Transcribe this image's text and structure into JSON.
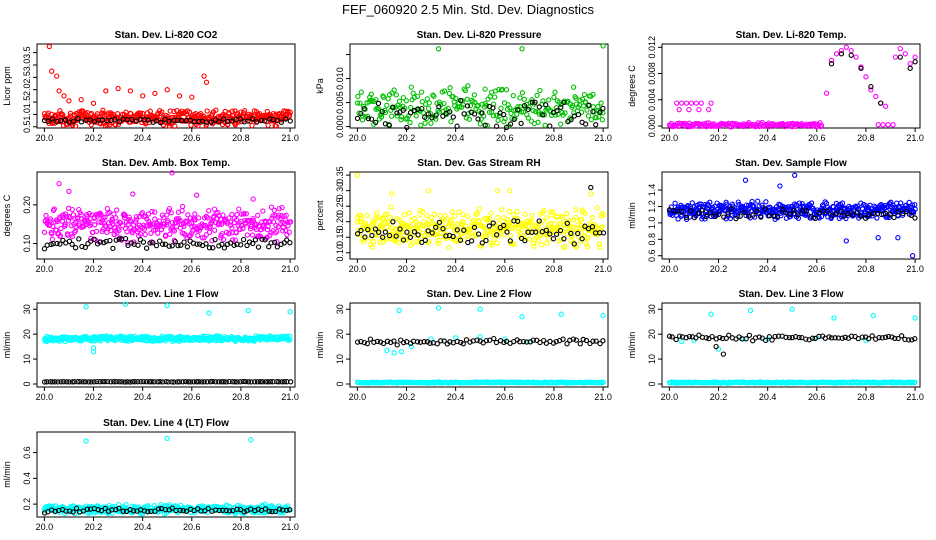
{
  "page": {
    "title": "FEF_060920  2.5 Min. Std. Dev. Diagnostics"
  },
  "chart_data": [
    {
      "id": "co2",
      "type": "scatter",
      "title": "Stan. Dev. Li-820 CO2",
      "ylabel": "Licor ppm",
      "xlim": [
        19.97,
        21.02
      ],
      "ylim": [
        0.45,
        3.85
      ],
      "xticks": [
        20.0,
        20.2,
        20.4,
        20.6,
        20.8,
        21.0
      ],
      "yticks": [
        0.5,
        1.0,
        1.5,
        2.0,
        2.5,
        3.0,
        3.5
      ],
      "ytick_labels": [
        "0.5",
        "1.0",
        "1.5",
        "2.0",
        "2.5",
        "3.0",
        "3.5"
      ],
      "series": [
        {
          "name": "main",
          "color": "#ff0000",
          "base": {
            "x0": 20.0,
            "x1": 21.0,
            "n": 420,
            "mean": 0.85,
            "spread": 0.35
          },
          "outliers": [
            [
              20.02,
              3.75
            ],
            [
              20.03,
              2.75
            ],
            [
              20.05,
              2.55
            ],
            [
              20.06,
              1.95
            ],
            [
              20.08,
              1.75
            ],
            [
              20.1,
              1.55
            ],
            [
              20.15,
              1.6
            ],
            [
              20.2,
              1.45
            ],
            [
              20.25,
              1.95
            ],
            [
              20.3,
              2.05
            ],
            [
              20.35,
              1.95
            ],
            [
              20.4,
              1.75
            ],
            [
              20.45,
              1.85
            ],
            [
              20.5,
              2.0
            ],
            [
              20.55,
              1.75
            ],
            [
              20.6,
              1.7
            ],
            [
              20.65,
              2.55
            ],
            [
              20.66,
              2.3
            ]
          ]
        },
        {
          "name": "overlay",
          "color": "#000000",
          "base": {
            "x0": 20.0,
            "x1": 21.0,
            "n": 60,
            "mean": 0.75,
            "spread": 0.1
          },
          "outliers": []
        }
      ]
    },
    {
      "id": "pressure",
      "type": "scatter",
      "title": "Stan. Dev. Li-820 Pressure",
      "ylabel": "kPa",
      "xlim": [
        19.97,
        21.02
      ],
      "ylim": [
        -0.0003,
        0.0172
      ],
      "xticks": [
        20.0,
        20.2,
        20.4,
        20.6,
        20.8,
        21.0
      ],
      "yticks": [
        0.0,
        0.005,
        0.01,
        0.015
      ],
      "ytick_labels": [
        "0.000",
        "0.005",
        "0.010",
        ""
      ],
      "series": [
        {
          "name": "main",
          "color": "#00c000",
          "base": {
            "x0": 20.0,
            "x1": 21.0,
            "n": 260,
            "mean": 0.004,
            "spread": 0.0045
          },
          "outliers": [
            [
              20.33,
              0.0162
            ],
            [
              20.67,
              0.0162
            ],
            [
              21.0,
              0.0168
            ],
            [
              20.45,
              0.0085
            ],
            [
              20.88,
              0.0082
            ],
            [
              20.52,
              0.0078
            ]
          ]
        },
        {
          "name": "overlay",
          "color": "#000000",
          "base": {
            "x0": 20.0,
            "x1": 21.0,
            "n": 70,
            "mean": 0.0025,
            "spread": 0.003
          },
          "outliers": []
        }
      ]
    },
    {
      "id": "temp",
      "type": "scatter",
      "title": "Stan. Dev. Li-820 Temp.",
      "ylabel": "degrees C",
      "xlim": [
        19.97,
        21.02
      ],
      "ylim": [
        -0.0003,
        0.0125
      ],
      "xticks": [
        20.0,
        20.2,
        20.4,
        20.6,
        20.8,
        21.0
      ],
      "yticks": [
        0.0,
        0.004,
        0.008,
        0.012
      ],
      "ytick_labels": [
        "0.000",
        "0.004",
        "0.008",
        "0.012"
      ],
      "series": [
        {
          "name": "main",
          "color": "#ff00ff",
          "base": {
            "x0": 20.0,
            "x1": 20.62,
            "n": 150,
            "mean": 0.0002,
            "spread": 0.0004
          },
          "outliers": [
            [
              20.03,
              0.0035
            ],
            [
              20.05,
              0.0035
            ],
            [
              20.07,
              0.0035
            ],
            [
              20.09,
              0.0035
            ],
            [
              20.11,
              0.0035
            ],
            [
              20.13,
              0.0035
            ],
            [
              20.17,
              0.0035
            ],
            [
              20.04,
              0.0025
            ],
            [
              20.08,
              0.0025
            ],
            [
              20.12,
              0.0025
            ],
            [
              20.16,
              0.0025
            ],
            [
              20.64,
              0.005
            ],
            [
              20.66,
              0.01
            ],
            [
              20.68,
              0.011
            ],
            [
              20.7,
              0.0115
            ],
            [
              20.72,
              0.012
            ],
            [
              20.74,
              0.0115
            ],
            [
              20.76,
              0.0105
            ],
            [
              20.78,
              0.009
            ],
            [
              20.8,
              0.0075
            ],
            [
              20.82,
              0.0055
            ],
            [
              20.84,
              0.0045
            ],
            [
              20.86,
              0.0035
            ],
            [
              20.88,
              0.003
            ],
            [
              20.92,
              0.0105
            ],
            [
              20.94,
              0.0118
            ],
            [
              20.96,
              0.011
            ],
            [
              20.98,
              0.0095
            ],
            [
              21.0,
              0.0105
            ],
            [
              20.85,
              0.0002
            ],
            [
              20.87,
              0.0002
            ],
            [
              20.89,
              0.0002
            ],
            [
              20.91,
              0.0002
            ]
          ]
        },
        {
          "name": "overlay",
          "color": "#000000",
          "base": {
            "x0": 20.64,
            "x1": 21.0,
            "n": 0,
            "mean": 0.0,
            "spread": 0.0
          },
          "outliers": [
            [
              20.66,
              0.0095
            ],
            [
              20.7,
              0.011
            ],
            [
              20.74,
              0.0108
            ],
            [
              20.78,
              0.0088
            ],
            [
              20.82,
              0.006
            ],
            [
              20.86,
              0.0035
            ],
            [
              20.94,
              0.0105
            ],
            [
              20.98,
              0.0088
            ],
            [
              21.0,
              0.0098
            ]
          ]
        }
      ]
    },
    {
      "id": "boxtemp",
      "type": "scatter",
      "title": "Stan. Dev. Amb. Box Temp.",
      "ylabel": "degrees C",
      "xlim": [
        19.97,
        21.02
      ],
      "ylim": [
        0.06,
        0.285
      ],
      "xticks": [
        20.0,
        20.2,
        20.4,
        20.6,
        20.8,
        21.0
      ],
      "yticks": [
        0.1,
        0.2
      ],
      "ytick_labels": [
        "0.10",
        "0.20"
      ],
      "series": [
        {
          "name": "main",
          "color": "#ff00ff",
          "base": {
            "x0": 20.0,
            "x1": 21.0,
            "n": 420,
            "mean": 0.15,
            "spread": 0.05
          },
          "outliers": [
            [
              20.52,
              0.283
            ],
            [
              20.06,
              0.255
            ],
            [
              20.1,
              0.235
            ],
            [
              20.36,
              0.228
            ],
            [
              20.62,
              0.225
            ],
            [
              20.85,
              0.215
            ]
          ]
        },
        {
          "name": "overlay",
          "color": "#000000",
          "base": {
            "x0": 20.0,
            "x1": 21.0,
            "n": 80,
            "mean": 0.1,
            "spread": 0.015
          },
          "outliers": []
        }
      ]
    },
    {
      "id": "rh",
      "type": "scatter",
      "title": "Stan. Dev. Gas Stream RH",
      "ylabel": "percent",
      "xlim": [
        19.97,
        21.02
      ],
      "ylim": [
        0.08,
        0.36
      ],
      "xticks": [
        20.0,
        20.2,
        20.4,
        20.6,
        20.8,
        21.0
      ],
      "yticks": [
        0.1,
        0.15,
        0.2,
        0.25,
        0.3,
        0.35
      ],
      "ytick_labels": [
        "0.10",
        "0.15",
        "0.20",
        "0.25",
        "0.30",
        "0.35"
      ],
      "series": [
        {
          "name": "main",
          "color": "#ffff00",
          "base": {
            "x0": 20.0,
            "x1": 21.0,
            "n": 420,
            "mean": 0.18,
            "spread": 0.07
          },
          "outliers": [
            [
              20.0,
              0.35
            ],
            [
              20.14,
              0.29
            ],
            [
              20.29,
              0.3
            ],
            [
              20.57,
              0.3
            ],
            [
              20.62,
              0.3
            ],
            [
              20.95,
              0.29
            ]
          ]
        },
        {
          "name": "overlay",
          "color": "#000000",
          "base": {
            "x0": 20.0,
            "x1": 21.0,
            "n": 70,
            "mean": 0.17,
            "spread": 0.045
          },
          "outliers": [
            [
              20.95,
              0.31
            ]
          ]
        }
      ]
    },
    {
      "id": "sampleflow",
      "type": "scatter",
      "title": "Stan. Dev. Sample Flow",
      "ylabel": "ml/min",
      "xlim": [
        19.97,
        21.02
      ],
      "ylim": [
        0.56,
        1.62
      ],
      "xticks": [
        20.0,
        20.2,
        20.4,
        20.6,
        20.8,
        21.0
      ],
      "yticks": [
        0.6,
        0.8,
        1.0,
        1.2,
        1.4
      ],
      "ytick_labels": [
        "0.6",
        "0.8",
        "1.0",
        "1.2",
        "1.4"
      ],
      "series": [
        {
          "name": "main",
          "color": "#0000ff",
          "base": {
            "x0": 20.0,
            "x1": 21.0,
            "n": 440,
            "mean": 1.15,
            "spread": 0.12
          },
          "outliers": [
            [
              20.31,
              1.52
            ],
            [
              20.51,
              1.58
            ],
            [
              20.45,
              1.45
            ],
            [
              20.72,
              0.78
            ],
            [
              20.99,
              0.6
            ],
            [
              20.85,
              0.82
            ],
            [
              20.93,
              0.82
            ]
          ]
        },
        {
          "name": "overlay",
          "color": "#000000",
          "base": {
            "x0": 20.0,
            "x1": 21.0,
            "n": 60,
            "mean": 1.12,
            "spread": 0.08
          },
          "outliers": []
        }
      ]
    },
    {
      "id": "line1",
      "type": "scatter",
      "title": "Stan. Dev. Line 1 Flow",
      "ylabel": "ml/min",
      "xlim": [
        19.97,
        21.02
      ],
      "ylim": [
        -1.2,
        32.5
      ],
      "xticks": [
        20.0,
        20.2,
        20.4,
        20.6,
        20.8,
        21.0
      ],
      "yticks": [
        0,
        10,
        20,
        30
      ],
      "ytick_labels": [
        "0",
        "10",
        "20",
        "30"
      ],
      "series": [
        {
          "name": "main",
          "color": "#00ffff",
          "base": {
            "x0": 20.0,
            "x1": 21.0,
            "n": 420,
            "mean": 18.2,
            "spread": 1.2
          },
          "outliers": [
            [
              20.17,
              31.0
            ],
            [
              20.33,
              32.0
            ],
            [
              20.5,
              31.5
            ],
            [
              20.67,
              28.5
            ],
            [
              20.83,
              29.5
            ],
            [
              21.0,
              29.0
            ],
            [
              20.2,
              13.0
            ],
            [
              20.2,
              14.5
            ]
          ]
        },
        {
          "name": "overlay",
          "color": "#000000",
          "base": {
            "x0": 20.0,
            "x1": 21.0,
            "n": 90,
            "mean": 0.9,
            "spread": 0.1
          },
          "outliers": []
        }
      ]
    },
    {
      "id": "line2",
      "type": "scatter",
      "title": "Stan. Dev. Line 2 Flow",
      "ylabel": "ml/min",
      "xlim": [
        19.97,
        21.02
      ],
      "ylim": [
        -1.2,
        32.5
      ],
      "xticks": [
        20.0,
        20.2,
        20.4,
        20.6,
        20.8,
        21.0
      ],
      "yticks": [
        0,
        10,
        20,
        30
      ],
      "ytick_labels": [
        "0",
        "10",
        "20",
        "30"
      ],
      "series": [
        {
          "name": "main",
          "color": "#00ffff",
          "base": {
            "x0": 20.0,
            "x1": 21.0,
            "n": 240,
            "mean": 0.6,
            "spread": 0.3
          },
          "outliers": [
            [
              20.17,
              29.5
            ],
            [
              20.33,
              30.5
            ],
            [
              20.5,
              30.0
            ],
            [
              20.67,
              27.0
            ],
            [
              20.83,
              28.0
            ],
            [
              21.0,
              27.5
            ],
            [
              20.12,
              13.5
            ],
            [
              20.15,
              12.5
            ],
            [
              20.18,
              13.0
            ],
            [
              20.22,
              15.0
            ],
            [
              20.3,
              18.0
            ],
            [
              20.4,
              18.5
            ],
            [
              20.5,
              19.0
            ],
            [
              20.6,
              18.0
            ],
            [
              20.7,
              17.0
            ]
          ]
        },
        {
          "name": "overlay",
          "color": "#000000",
          "base": {
            "x0": 20.0,
            "x1": 21.0,
            "n": 75,
            "mean": 17.0,
            "spread": 1.5
          },
          "outliers": []
        }
      ]
    },
    {
      "id": "line3",
      "type": "scatter",
      "title": "Stan. Dev. Line 3 Flow",
      "ylabel": "ml/min",
      "xlim": [
        19.97,
        21.02
      ],
      "ylim": [
        -1.2,
        32.5
      ],
      "xticks": [
        20.0,
        20.2,
        20.4,
        20.6,
        20.8,
        21.0
      ],
      "yticks": [
        0,
        10,
        20,
        30
      ],
      "ytick_labels": [
        "0",
        "10",
        "20",
        "30"
      ],
      "series": [
        {
          "name": "main",
          "color": "#00ffff",
          "base": {
            "x0": 20.0,
            "x1": 21.0,
            "n": 240,
            "mean": 0.6,
            "spread": 0.3
          },
          "outliers": [
            [
              20.17,
              28.0
            ],
            [
              20.33,
              29.5
            ],
            [
              20.5,
              30.0
            ],
            [
              20.67,
              26.5
            ],
            [
              20.83,
              27.5
            ],
            [
              21.0,
              26.5
            ],
            [
              20.05,
              17.0
            ],
            [
              20.1,
              17.5
            ],
            [
              20.2,
              14.0
            ],
            [
              20.3,
              18.0
            ],
            [
              20.4,
              18.0
            ],
            [
              20.6,
              18.5
            ],
            [
              20.8,
              17.5
            ]
          ]
        },
        {
          "name": "overlay",
          "color": "#000000",
          "base": {
            "x0": 20.0,
            "x1": 21.0,
            "n": 75,
            "mean": 18.5,
            "spread": 1.2
          },
          "outliers": [
            [
              20.22,
              12.0
            ],
            [
              20.19,
              15.0
            ]
          ]
        }
      ]
    },
    {
      "id": "line4",
      "type": "scatter",
      "title": "Stan. Dev. Line 4 (LT) Flow",
      "ylabel": "ml/min",
      "xlim": [
        19.97,
        21.02
      ],
      "ylim": [
        0.1,
        0.76
      ],
      "xticks": [
        20.0,
        20.2,
        20.4,
        20.6,
        20.8,
        21.0
      ],
      "yticks": [
        0.2,
        0.4,
        0.6
      ],
      "ytick_labels": [
        "0.2",
        "0.4",
        "0.6"
      ],
      "series": [
        {
          "name": "main",
          "color": "#00ffff",
          "base": {
            "x0": 20.0,
            "x1": 21.0,
            "n": 400,
            "mean": 0.16,
            "spread": 0.04
          },
          "outliers": [
            [
              20.17,
              0.69
            ],
            [
              20.5,
              0.71
            ],
            [
              20.84,
              0.7
            ]
          ]
        },
        {
          "name": "overlay",
          "color": "#000000",
          "base": {
            "x0": 20.0,
            "x1": 21.0,
            "n": 70,
            "mean": 0.15,
            "spread": 0.025
          },
          "outliers": []
        }
      ]
    }
  ]
}
